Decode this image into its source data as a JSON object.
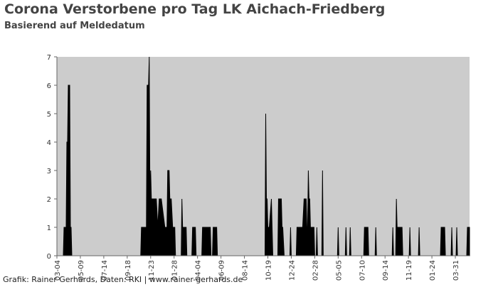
{
  "chart_data": {
    "type": "area",
    "title": "Corona Verstorbene pro Tag LK Aichach-Friedberg",
    "subtitle": "Basierend auf Meldedatum",
    "footer": "Grafik: Rainer Gerhards, Daten: RKI | www.rainer-gerhards.de",
    "color": "#000000",
    "background": "#cccccc",
    "x": [
      0,
      18,
      20,
      22,
      26,
      28,
      30,
      32,
      34,
      36,
      38,
      40,
      42,
      236,
      238,
      248,
      252,
      254,
      258,
      260,
      262,
      264,
      266,
      268,
      272,
      276,
      280,
      284,
      288,
      290,
      294,
      304,
      306,
      310,
      312,
      316,
      318,
      322,
      326,
      332,
      334,
      350,
      352,
      354,
      356,
      362,
      364,
      366,
      380,
      382,
      390,
      392,
      408,
      410,
      432,
      434,
      438,
      440,
      450,
      452,
      586,
      588,
      590,
      592,
      594,
      596,
      598,
      604,
      606,
      608,
      610,
      612,
      622,
      624,
      632,
      634,
      636,
      640,
      642,
      656,
      658,
      660,
      674,
      676,
      688,
      690,
      692,
      696,
      702,
      704,
      706,
      708,
      710,
      712,
      714,
      716,
      718,
      720,
      722,
      724,
      726,
      730,
      732,
      734,
      744,
      746,
      748,
      750,
      790,
      792,
      794,
      812,
      814,
      816,
      824,
      826,
      828,
      864,
      866,
      876,
      878,
      896,
      898,
      900,
      944,
      946,
      948,
      954,
      956,
      958,
      960,
      962,
      968,
      970,
      972,
      974,
      976,
      978,
      992,
      994,
      996,
      1018,
      1020,
      1022,
      1080,
      1082,
      1092,
      1094,
      1110,
      1112,
      1114,
      1124,
      1126,
      1128,
      1154,
      1156,
      1162
    ],
    "values": [
      0,
      0,
      1,
      1,
      1,
      4,
      4,
      6,
      6,
      6,
      1,
      1,
      0,
      0,
      1,
      1,
      1,
      6,
      6,
      7,
      2,
      3,
      2,
      2,
      2,
      2,
      2,
      1,
      2,
      2,
      2,
      1,
      1,
      1,
      3,
      3,
      2,
      2,
      1,
      1,
      0,
      0,
      2,
      1,
      1,
      1,
      1,
      0,
      0,
      1,
      1,
      0,
      0,
      1,
      1,
      0,
      0,
      1,
      1,
      0,
      0,
      5,
      2,
      2,
      1,
      1,
      1,
      2,
      1,
      0,
      0,
      0,
      0,
      2,
      2,
      1,
      1,
      0,
      0,
      0,
      1,
      0,
      0,
      1,
      1,
      1,
      1,
      2,
      2,
      1,
      1,
      3,
      2,
      2,
      1,
      1,
      1,
      1,
      1,
      1,
      0,
      0,
      1,
      0,
      0,
      0,
      3,
      0,
      0,
      1,
      0,
      0,
      1,
      0,
      0,
      1,
      0,
      0,
      1,
      1,
      0,
      0,
      1,
      0,
      0,
      1,
      0,
      0,
      2,
      1,
      1,
      1,
      1,
      1,
      1,
      0,
      0,
      0,
      0,
      1,
      0,
      0,
      1,
      0,
      0,
      1,
      1,
      0,
      0,
      1,
      0,
      0,
      1,
      0,
      0,
      1,
      1
    ],
    "xlim": [
      0,
      1162
    ],
    "xticks": [
      {
        "value": 0,
        "label": "03-04"
      },
      {
        "value": 66,
        "label": "05-09"
      },
      {
        "value": 132,
        "label": "07-14"
      },
      {
        "value": 198,
        "label": "09-18"
      },
      {
        "value": 264,
        "label": "11-23"
      },
      {
        "value": 330,
        "label": "01-28"
      },
      {
        "value": 396,
        "label": "04-04"
      },
      {
        "value": 462,
        "label": "06-09"
      },
      {
        "value": 528,
        "label": "08-14"
      },
      {
        "value": 594,
        "label": "10-19"
      },
      {
        "value": 660,
        "label": "12-24"
      },
      {
        "value": 726,
        "label": "02-28"
      },
      {
        "value": 792,
        "label": "05-05"
      },
      {
        "value": 858,
        "label": "07-10"
      },
      {
        "value": 924,
        "label": "09-14"
      },
      {
        "value": 990,
        "label": "11-19"
      },
      {
        "value": 1056,
        "label": "01-24"
      },
      {
        "value": 1122,
        "label": "03-31"
      }
    ],
    "ylim": [
      0,
      7
    ],
    "yticks": [
      0,
      1,
      2,
      3,
      4,
      5,
      6,
      7
    ]
  }
}
